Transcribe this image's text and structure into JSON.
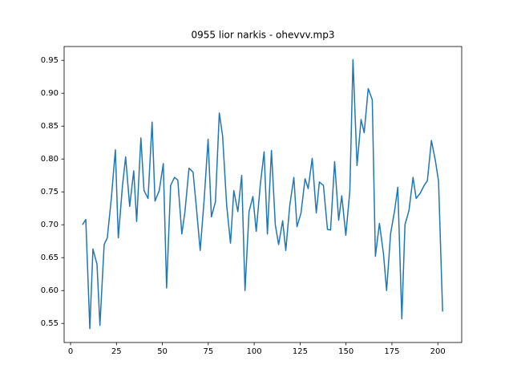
{
  "chart_data": {
    "type": "line",
    "title": "0955 lior narkis - ohevvv.mp3",
    "color": "#1f77b4",
    "x": [
      6.5,
      8.3,
      10.5,
      12.2,
      14.4,
      16,
      18.3,
      20,
      22.2,
      24.4,
      26,
      28.3,
      30,
      32.2,
      34.4,
      36,
      38.3,
      40,
      42.2,
      44.4,
      46,
      48.3,
      50.5,
      52.3,
      54.5,
      56.6,
      58.4,
      60.6,
      62.3,
      64.5,
      66.7,
      68.4,
      70.6,
      72.8,
      74.9,
      76.7,
      78.9,
      81,
      82.8,
      85,
      87.1,
      88.9,
      91.1,
      93.2,
      95,
      97.2,
      99.3,
      101.1,
      103.3,
      105.4,
      107.2,
      109.4,
      111.5,
      113.3,
      115.5,
      117.2,
      119.4,
      121.6,
      123.3,
      125.5,
      127.7,
      129.4,
      131.6,
      133.8,
      135.5,
      137.7,
      139.9,
      141.6,
      143.8,
      146,
      147.7,
      149.9,
      152.1,
      153.8,
      156,
      158.2,
      159.9,
      162.1,
      164.3,
      166,
      168.2,
      170.4,
      172.1,
      174.3,
      176.5,
      178.2,
      180.4,
      182.1,
      184.3,
      186.5,
      188.2,
      190.4,
      192.6,
      194.3,
      196.5,
      198.7,
      200.4,
      202.6
    ],
    "values": [
      0.7,
      0.708,
      0.542,
      0.663,
      0.64,
      0.547,
      0.67,
      0.68,
      0.74,
      0.814,
      0.68,
      0.76,
      0.803,
      0.728,
      0.782,
      0.705,
      0.832,
      0.752,
      0.74,
      0.856,
      0.736,
      0.752,
      0.793,
      0.604,
      0.76,
      0.772,
      0.768,
      0.686,
      0.72,
      0.786,
      0.78,
      0.73,
      0.661,
      0.74,
      0.83,
      0.712,
      0.735,
      0.87,
      0.835,
      0.73,
      0.672,
      0.752,
      0.72,
      0.775,
      0.6,
      0.72,
      0.743,
      0.69,
      0.76,
      0.811,
      0.686,
      0.813,
      0.7,
      0.67,
      0.706,
      0.661,
      0.73,
      0.772,
      0.697,
      0.718,
      0.77,
      0.755,
      0.801,
      0.718,
      0.765,
      0.76,
      0.693,
      0.692,
      0.796,
      0.707,
      0.744,
      0.684,
      0.752,
      0.951,
      0.79,
      0.86,
      0.84,
      0.907,
      0.89,
      0.652,
      0.702,
      0.656,
      0.6,
      0.687,
      0.722,
      0.757,
      0.557,
      0.7,
      0.722,
      0.772,
      0.74,
      0.748,
      0.76,
      0.767,
      0.828,
      0.797,
      0.766,
      0.568
    ],
    "xlim": [
      -3.5,
      213
    ],
    "ylim": [
      0.521,
      0.971
    ],
    "xticks": [
      0,
      25,
      50,
      75,
      100,
      125,
      150,
      175,
      200
    ],
    "yticks": [
      0.55,
      {
        "value": 0.6,
        "label": "0.60"
      },
      0.65,
      {
        "value": 0.7,
        "label": "0.70"
      },
      0.75,
      {
        "value": 0.8,
        "label": "0.80"
      },
      0.85,
      {
        "value": 0.9,
        "label": "0.90"
      },
      0.95
    ]
  }
}
